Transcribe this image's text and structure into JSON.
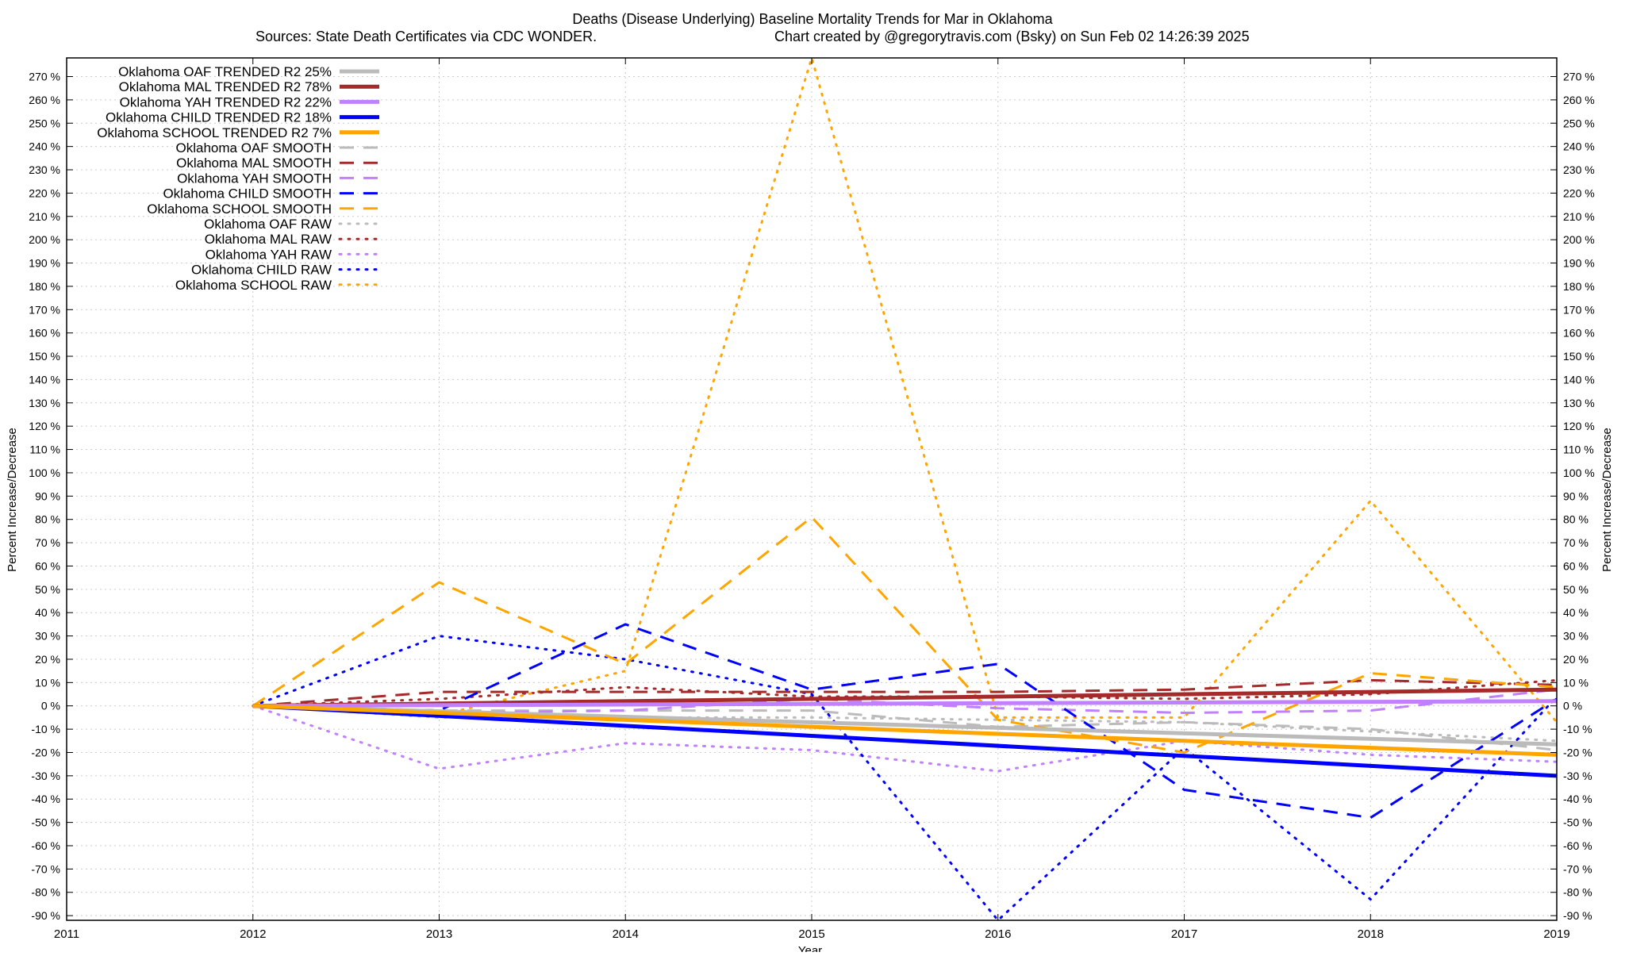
{
  "chart_data": {
    "type": "line",
    "title": "Deaths (Disease Underlying)  Baseline Mortality Trends for Mar in Oklahoma",
    "subtitle_left": "Sources: State Death Certificates via CDC WONDER.",
    "subtitle_right": "Chart created by @gregorytravis.com (Bsky) on Sun Feb 02 14:26:39 2025",
    "xlabel": "Year",
    "ylabel": "Percent Increase/Decrease",
    "y2label": "Percent Increase/Decrease",
    "xlim": [
      2011,
      2019
    ],
    "ylim": [
      -92,
      278
    ],
    "xticks": [
      "2011",
      "2012",
      "2013",
      "2014",
      "2015",
      "2016",
      "2017",
      "2018",
      "2019"
    ],
    "yticks": [
      "270 %",
      "260 %",
      "250 %",
      "240 %",
      "230 %",
      "220 %",
      "210 %",
      "200 %",
      "190 %",
      "180 %",
      "170 %",
      "160 %",
      "150 %",
      "140 %",
      "130 %",
      "120 %",
      "110 %",
      "100 %",
      "90 %",
      "80 %",
      "70 %",
      "60 %",
      "50 %",
      "40 %",
      "30 %",
      "20 %",
      "10 %",
      "0 %",
      "-10 %",
      "-20 %",
      "-30 %",
      "-40 %",
      "-50 %",
      "-60 %",
      "-70 %",
      "-80 %",
      "-90 %"
    ],
    "grid": true,
    "legend_position": "top-left",
    "series": [
      {
        "name": "Oklahoma OAF TRENDED R2  25%",
        "style": "solid",
        "color": "#bbbbbb",
        "x": [
          2012,
          2019
        ],
        "y": [
          0,
          -16.5
        ]
      },
      {
        "name": "Oklahoma MAL TRENDED R2  78%",
        "style": "solid",
        "color": "#a52a2a",
        "x": [
          2012,
          2019
        ],
        "y": [
          0,
          7
        ]
      },
      {
        "name": "Oklahoma YAH TRENDED R2  22%",
        "style": "solid",
        "color": "#c080ff",
        "x": [
          2012,
          2019
        ],
        "y": [
          0,
          2
        ]
      },
      {
        "name": "Oklahoma CHILD TRENDED R2  18%",
        "style": "solid",
        "color": "#0000ff",
        "x": [
          2012,
          2019
        ],
        "y": [
          0,
          -30
        ]
      },
      {
        "name": "Oklahoma SCHOOL TRENDED R2  7%",
        "style": "solid",
        "color": "#ffa500",
        "x": [
          2012,
          2019
        ],
        "y": [
          0,
          -21
        ]
      },
      {
        "name": "Oklahoma OAF SMOOTH",
        "style": "dashed",
        "color": "#bbbbbb",
        "x": [
          2012,
          2013,
          2014,
          2015,
          2016,
          2017,
          2018,
          2019
        ],
        "y": [
          0,
          -2,
          -2,
          -2,
          -9,
          -7,
          -10,
          -19
        ]
      },
      {
        "name": "Oklahoma MAL SMOOTH",
        "style": "dashed",
        "color": "#a52a2a",
        "x": [
          2012,
          2013,
          2014,
          2015,
          2016,
          2017,
          2018,
          2019
        ],
        "y": [
          0,
          6,
          6,
          6,
          6,
          7,
          11,
          9
        ]
      },
      {
        "name": "Oklahoma YAH SMOOTH",
        "style": "dashed",
        "color": "#c080ff",
        "x": [
          2012,
          2013,
          2014,
          2015,
          2016,
          2017,
          2018,
          2019
        ],
        "y": [
          0,
          -3,
          -2,
          3,
          -1,
          -3,
          -2,
          7
        ]
      },
      {
        "name": "Oklahoma CHILD SMOOTH",
        "style": "dashed",
        "color": "#0000ff",
        "x": [
          2012,
          2013,
          2014,
          2015,
          2016,
          2017,
          2018,
          2019
        ],
        "y": [
          0,
          -2,
          35,
          7,
          18,
          -36,
          -48,
          3
        ]
      },
      {
        "name": "Oklahoma SCHOOL SMOOTH",
        "style": "dashed",
        "color": "#ffa500",
        "x": [
          2012,
          2013,
          2014,
          2015,
          2016,
          2017,
          2018,
          2019
        ],
        "y": [
          0,
          53,
          18,
          81,
          -6,
          -20,
          14,
          8
        ]
      },
      {
        "name": "Oklahoma OAF RAW",
        "style": "dotted",
        "color": "#bbbbbb",
        "x": [
          2012,
          2013,
          2014,
          2015,
          2016,
          2017,
          2018,
          2019
        ],
        "y": [
          0,
          -5,
          -5,
          -5,
          -6,
          -7,
          -11,
          -15
        ]
      },
      {
        "name": "Oklahoma MAL RAW",
        "style": "dotted",
        "color": "#a52a2a",
        "x": [
          2012,
          2013,
          2014,
          2015,
          2016,
          2017,
          2018,
          2019
        ],
        "y": [
          0,
          3,
          8,
          4,
          4,
          3,
          5,
          11
        ]
      },
      {
        "name": "Oklahoma YAH RAW",
        "style": "dotted",
        "color": "#c080ff",
        "x": [
          2012,
          2013,
          2014,
          2015,
          2016,
          2017,
          2018,
          2019
        ],
        "y": [
          0,
          -27,
          -16,
          -19,
          -28,
          -15,
          -21,
          -24
        ]
      },
      {
        "name": "Oklahoma CHILD RAW",
        "style": "dotted",
        "color": "#0000ff",
        "x": [
          2012,
          2013,
          2014,
          2015,
          2016,
          2017,
          2018,
          2019
        ],
        "y": [
          0,
          30,
          20,
          5,
          -92,
          -18,
          -83,
          4
        ]
      },
      {
        "name": "Oklahoma SCHOOL RAW",
        "style": "dotted",
        "color": "#ffa500",
        "x": [
          2012,
          2013,
          2014,
          2015,
          2016,
          2017,
          2018,
          2019
        ],
        "y": [
          0,
          -4,
          15,
          278,
          -5,
          -5,
          88,
          -7
        ]
      }
    ]
  }
}
